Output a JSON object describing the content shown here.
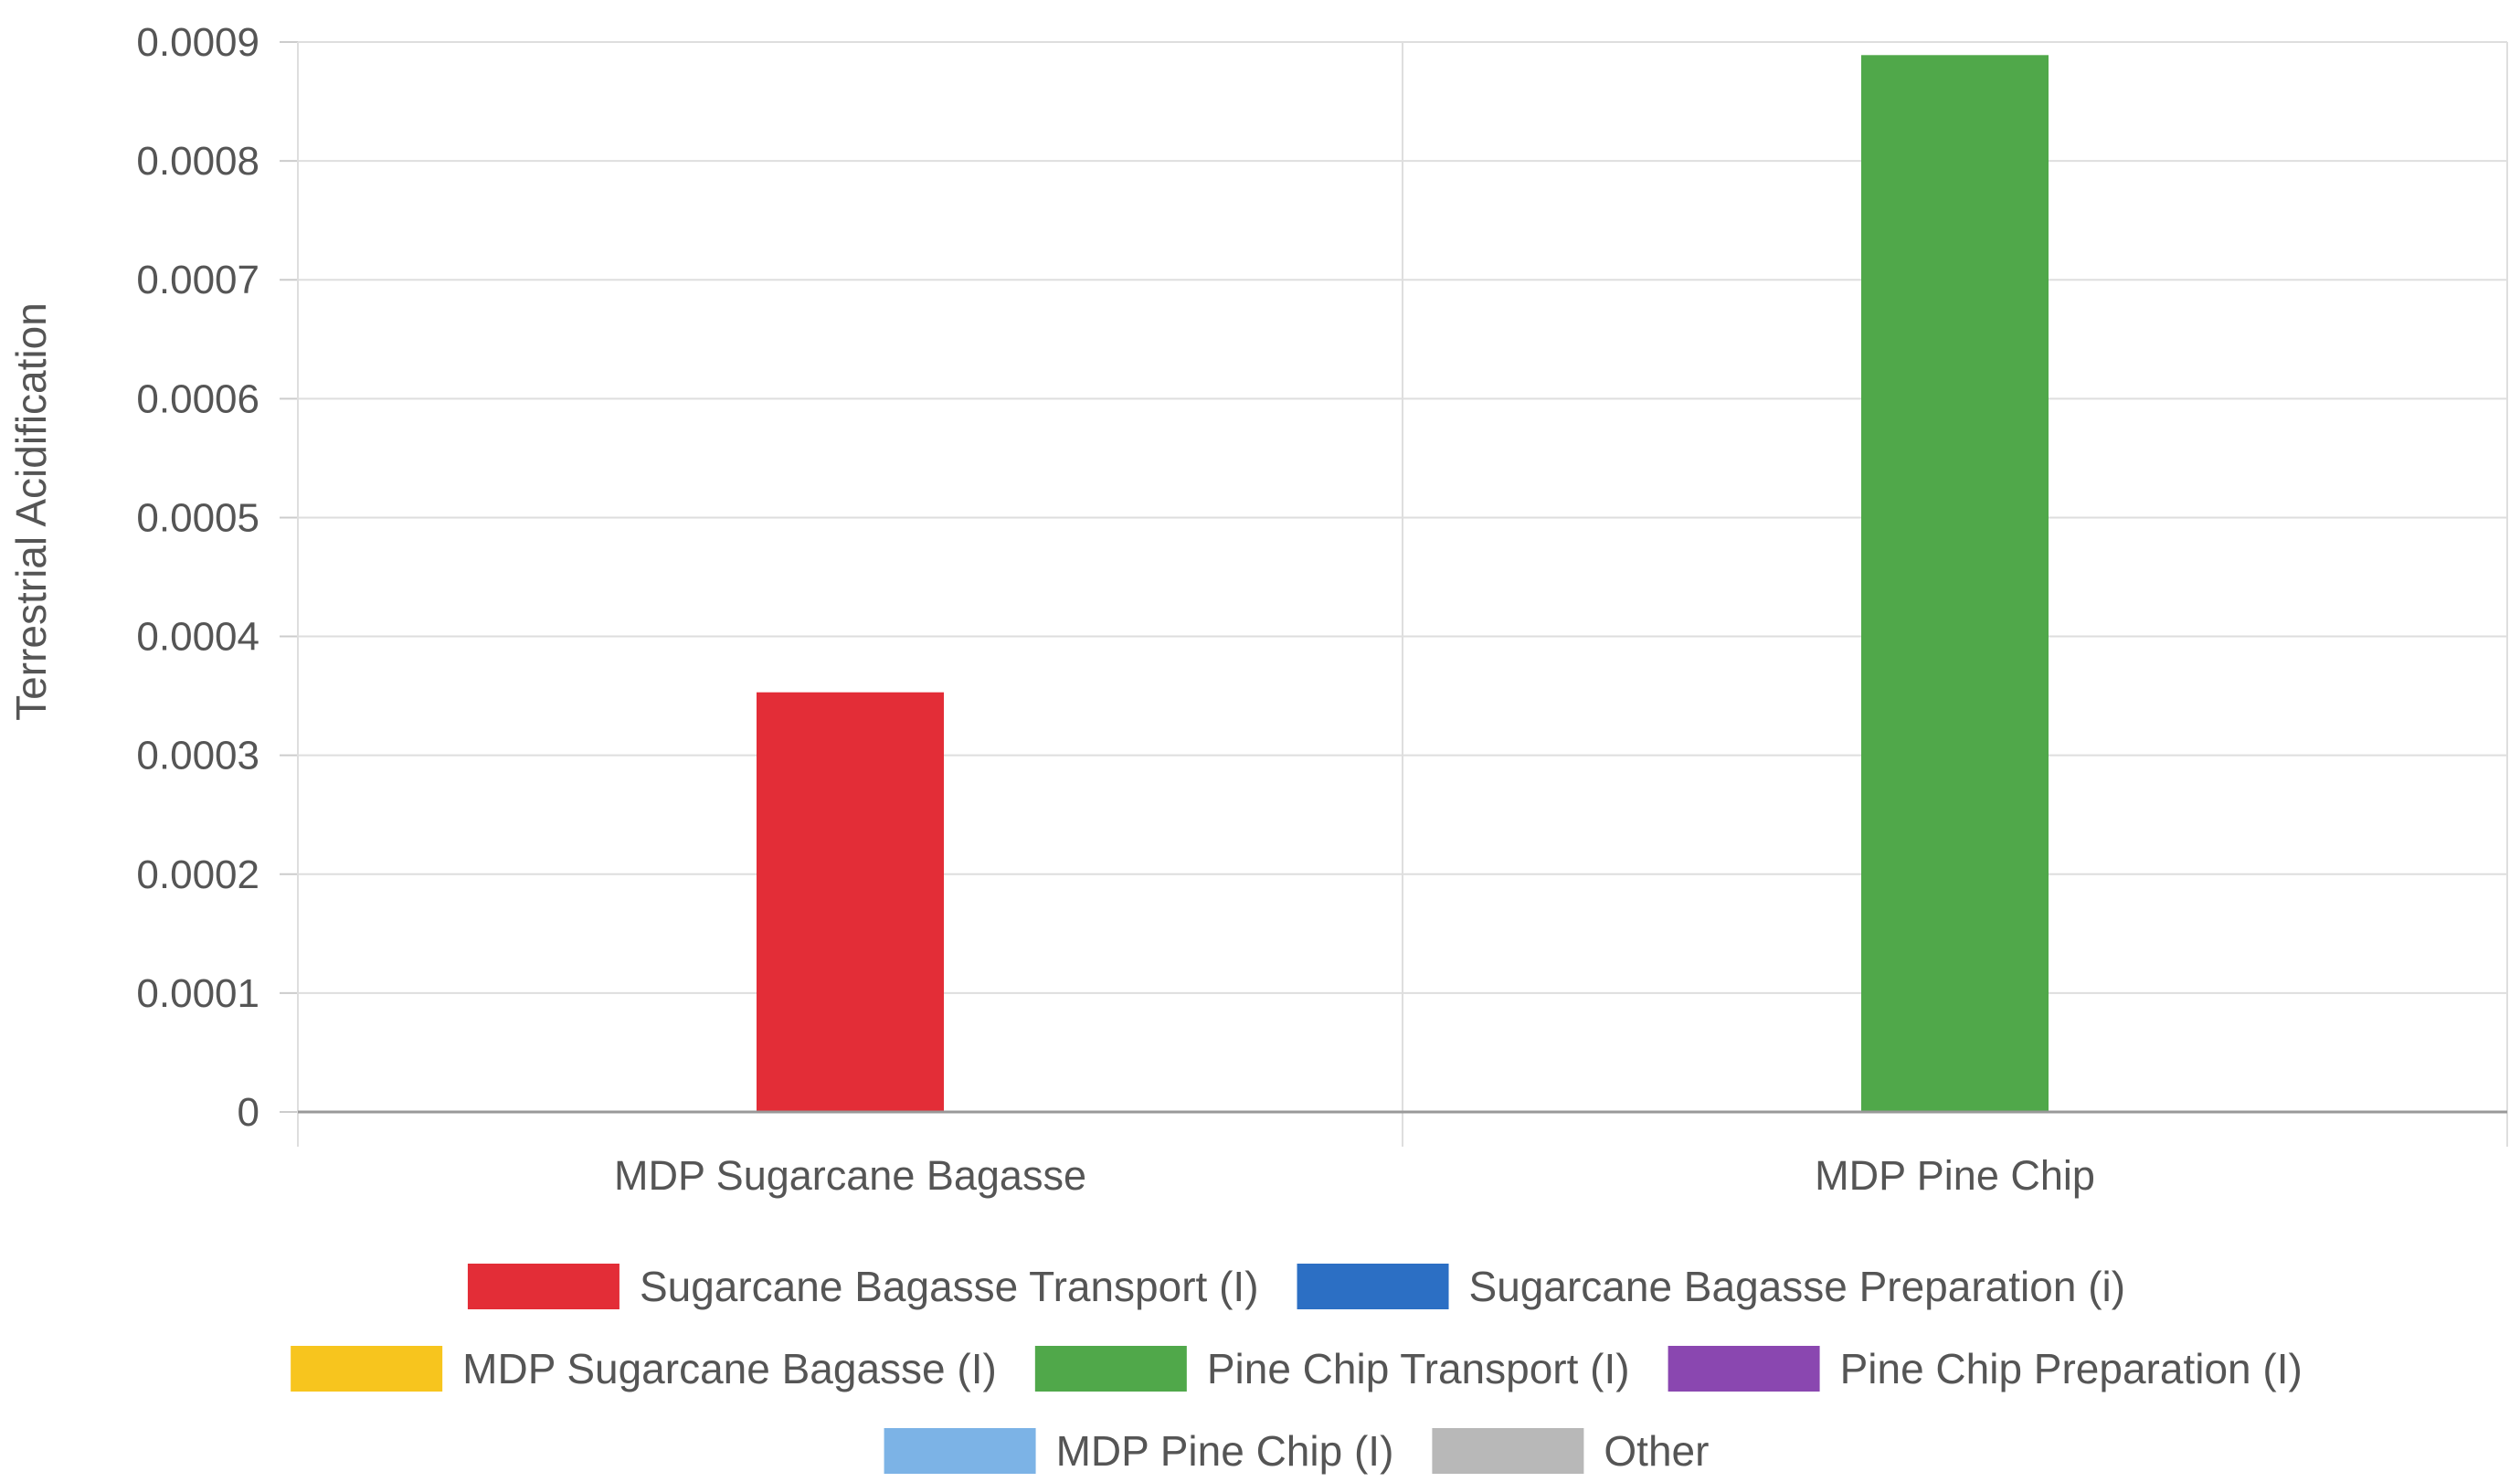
{
  "chart_data": {
    "type": "bar",
    "title": "",
    "xlabel": "",
    "ylabel": "Terrestrial Acidification",
    "ylim": [
      0,
      0.0009
    ],
    "yticks": [
      "0",
      "0.0001",
      "0.0002",
      "0.0003",
      "0.0004",
      "0.0005",
      "0.0006",
      "0.0007",
      "0.0008",
      "0.0009"
    ],
    "grid": true,
    "categories": [
      "MDP Sugarcane Bagasse",
      "MDP Pine Chip"
    ],
    "series": [
      {
        "name": "Sugarcane Bagasse Transport (I)",
        "color": "#e32d37",
        "values": [
          0.000353,
          0
        ]
      },
      {
        "name": "Sugarcane Bagasse Preparation (i)",
        "color": "#2c6fc4",
        "values": [
          0,
          0
        ]
      },
      {
        "name": "MDP Sugarcane Bagasse (I)",
        "color": "#f7c51e",
        "values": [
          0,
          0
        ]
      },
      {
        "name": "Pine Chip Transport (I)",
        "color": "#50a84a",
        "values": [
          0,
          0.000889
        ]
      },
      {
        "name": "Pine Chip Preparation (I)",
        "color": "#8a47b0",
        "values": [
          0,
          0
        ]
      },
      {
        "name": "MDP Pine Chip (I)",
        "color": "#7cb3e6",
        "values": [
          0,
          0
        ]
      },
      {
        "name": "Other",
        "color": "#b8b8b8",
        "values": [
          0,
          0
        ]
      }
    ],
    "legend_position": "bottom"
  }
}
